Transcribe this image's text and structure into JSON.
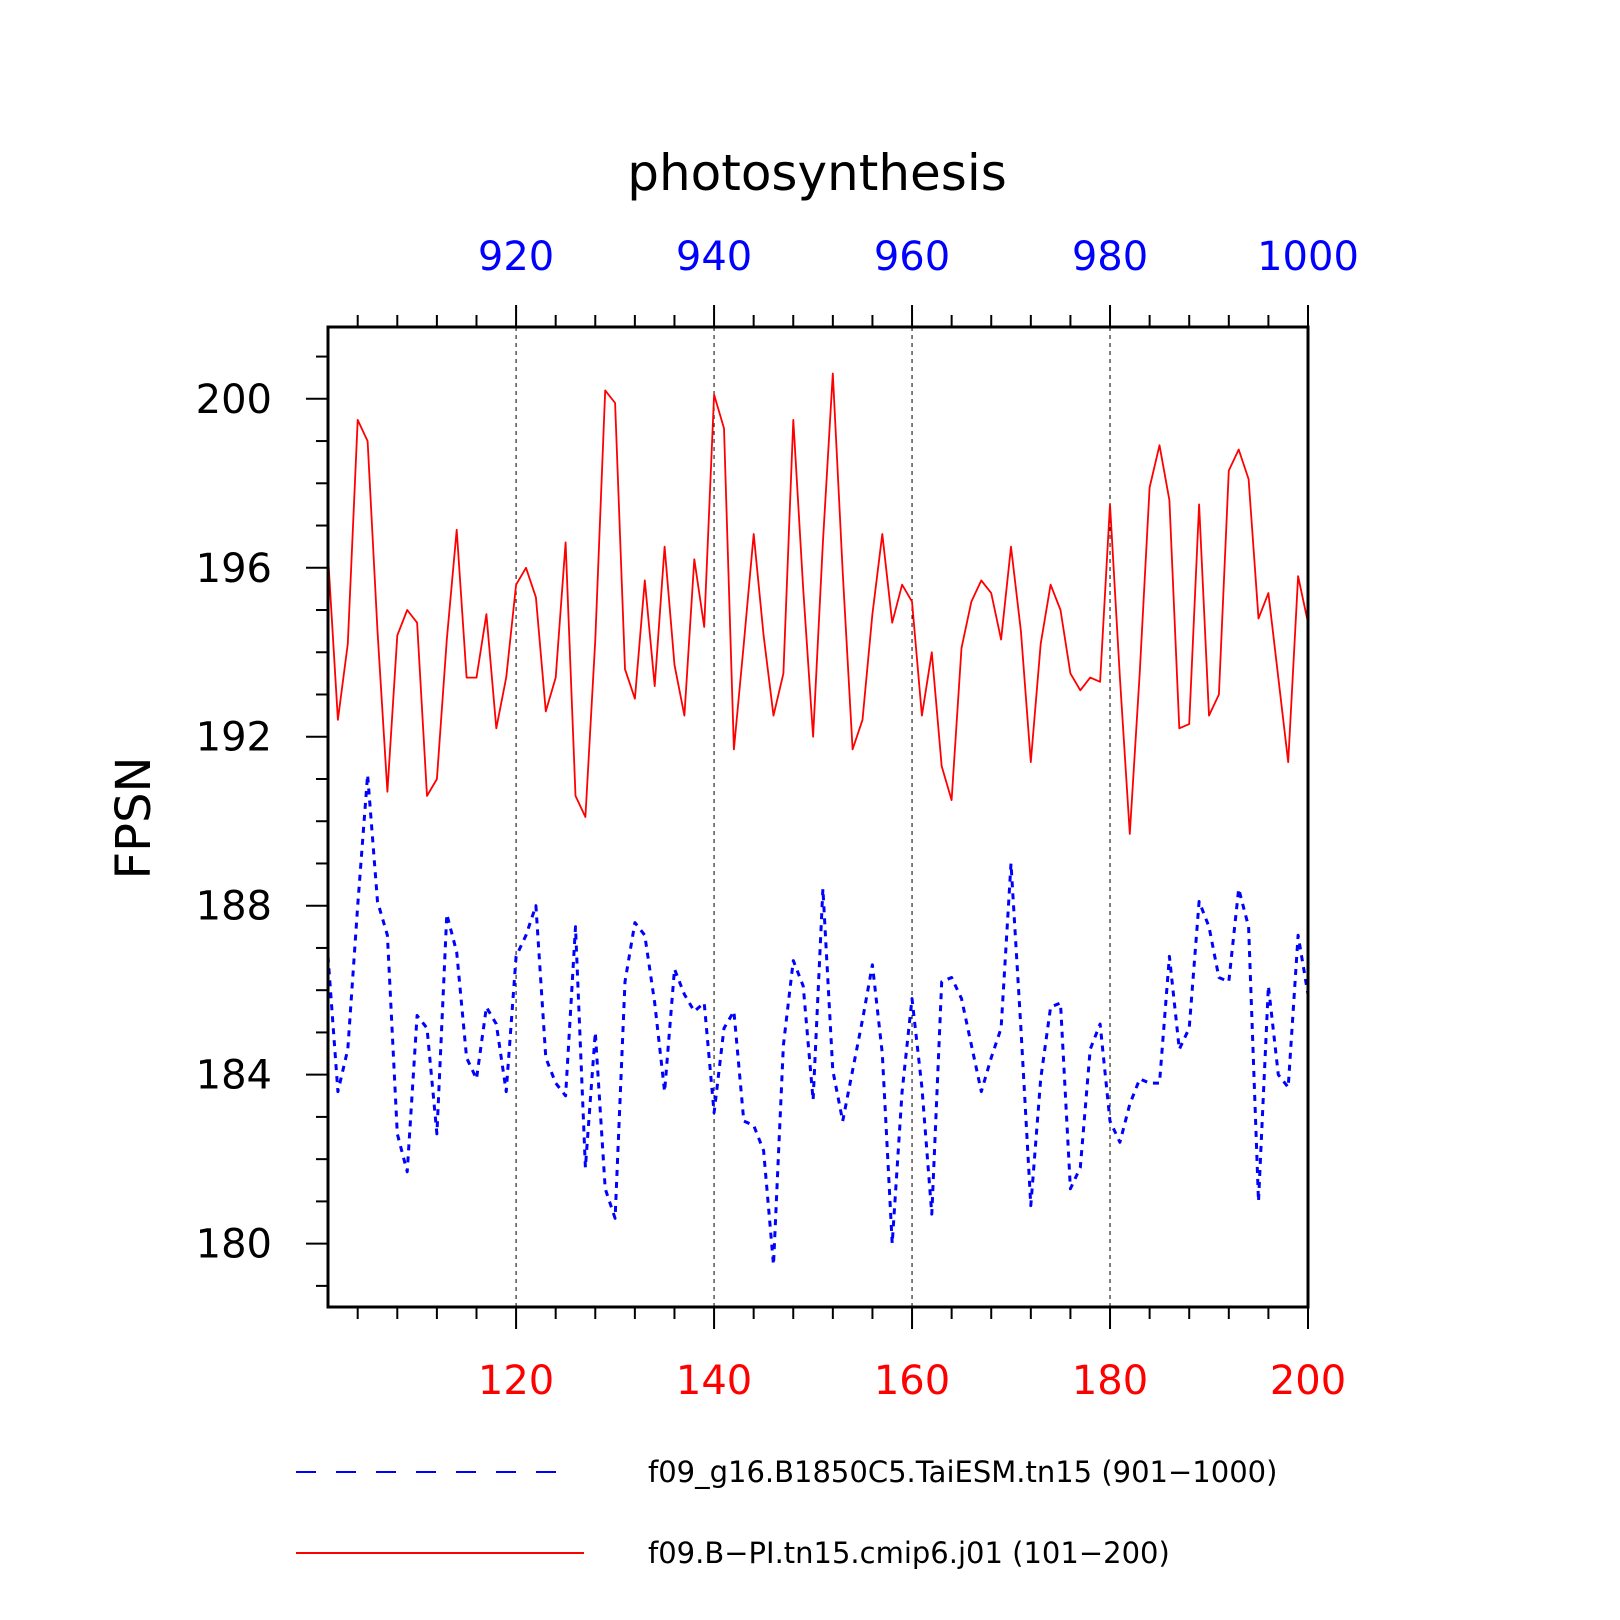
{
  "chart_data": {
    "type": "line",
    "title": "photosynthesis",
    "ylabel": "FPSN",
    "ylim": [
      178.5,
      201.7
    ],
    "yticks": [
      180,
      184,
      188,
      192,
      196,
      200
    ],
    "ytick_labels": [
      "180",
      "184",
      "188",
      "192",
      "196",
      "200"
    ],
    "grid": "vertical-dashed",
    "x_bottom": {
      "range": [
        101,
        200
      ],
      "ticks": [
        120,
        140,
        160,
        180,
        200
      ],
      "tick_labels": [
        "120",
        "140",
        "160",
        "180",
        "200"
      ],
      "color": "#ff0000"
    },
    "x_top": {
      "range": [
        901,
        1000
      ],
      "ticks": [
        920,
        940,
        960,
        980,
        1000
      ],
      "tick_labels": [
        "920",
        "940",
        "960",
        "980",
        "1000"
      ],
      "color": "#0000ff"
    },
    "legend_position": "bottom",
    "series": [
      {
        "name": "f09_g16.B1850C5.TaiESM.tn15 (901−1000)",
        "axis": "top",
        "color": "#0000ff",
        "style": "dashed",
        "x_start": 901,
        "values": [
          186.8,
          183.6,
          184.6,
          188.0,
          191.1,
          188.1,
          187.3,
          182.6,
          181.7,
          185.4,
          185.1,
          182.6,
          187.8,
          186.9,
          184.4,
          183.9,
          185.6,
          185.2,
          183.6,
          186.8,
          187.3,
          188.0,
          184.4,
          183.8,
          183.5,
          187.5,
          181.8,
          185.0,
          181.3,
          180.6,
          186.2,
          187.6,
          187.3,
          185.7,
          183.6,
          186.5,
          185.9,
          185.5,
          185.7,
          183.1,
          185.1,
          185.5,
          182.9,
          182.8,
          182.2,
          179.5,
          184.7,
          186.7,
          186.1,
          183.4,
          188.4,
          184.1,
          182.9,
          184.1,
          185.3,
          186.6,
          184.5,
          180.0,
          183.6,
          185.8,
          183.7,
          180.7,
          186.2,
          186.3,
          185.8,
          184.7,
          183.6,
          184.4,
          185.1,
          189.0,
          185.1,
          180.9,
          183.9,
          185.6,
          185.7,
          181.3,
          181.8,
          184.6,
          185.2,
          182.9,
          182.4,
          183.3,
          183.9,
          183.8,
          183.8,
          186.8,
          184.6,
          185.1,
          188.1,
          187.5,
          186.3,
          186.2,
          188.4,
          187.5,
          181.0,
          186.1,
          184.0,
          183.7,
          187.3,
          185.9
        ]
      },
      {
        "name": "f09.B−PI.tn15.cmip6.j01 (101−200)",
        "axis": "bottom",
        "color": "#ff0000",
        "style": "solid",
        "x_start": 101,
        "values": [
          196.3,
          192.4,
          194.2,
          199.5,
          199.0,
          194.5,
          190.7,
          194.4,
          195.0,
          194.7,
          190.6,
          191.0,
          194.3,
          196.9,
          193.4,
          193.4,
          194.9,
          192.2,
          193.4,
          195.6,
          196.0,
          195.3,
          192.6,
          193.4,
          196.6,
          190.6,
          190.1,
          194.3,
          200.2,
          199.9,
          193.6,
          192.9,
          195.7,
          193.2,
          196.5,
          193.7,
          192.5,
          196.2,
          194.6,
          200.1,
          199.3,
          191.7,
          194.2,
          196.8,
          194.4,
          192.5,
          193.5,
          199.5,
          195.5,
          192.0,
          196.6,
          200.6,
          195.9,
          191.7,
          192.4,
          194.9,
          196.8,
          194.7,
          195.6,
          195.2,
          192.5,
          194.0,
          191.3,
          190.5,
          194.1,
          195.2,
          195.7,
          195.4,
          194.3,
          196.5,
          194.5,
          191.4,
          194.2,
          195.6,
          195.0,
          193.5,
          193.1,
          193.4,
          193.3,
          197.5,
          193.4,
          189.7,
          193.5,
          197.9,
          198.9,
          197.6,
          192.2,
          192.3,
          197.5,
          192.5,
          193.0,
          198.3,
          198.8,
          198.1,
          194.8,
          195.4,
          193.4,
          191.4,
          195.8,
          194.7
        ]
      }
    ]
  }
}
